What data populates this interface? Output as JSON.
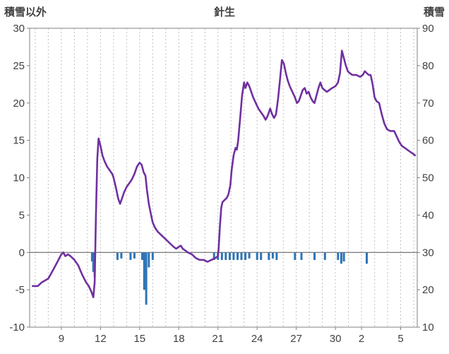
{
  "header": {
    "left_axis_title": "積雪以外",
    "title": "針生",
    "right_axis_title": "積雪"
  },
  "chart_data": {
    "type": "line",
    "title": "針生",
    "grid_color": "#c0c0c0",
    "axis_color": "#808080",
    "text_color": "#404040",
    "left_axis": {
      "label": "積雪以外",
      "min": -10,
      "max": 30,
      "ticks": [
        30,
        25,
        20,
        15,
        10,
        5,
        0,
        -5,
        -10
      ]
    },
    "right_axis": {
      "label": "積雪",
      "min": 10,
      "max": 90,
      "ticks": [
        90,
        80,
        70,
        60,
        50,
        40,
        30,
        20,
        10
      ]
    },
    "x_axis": {
      "min": 6.57,
      "max": 36.27,
      "ticks": [
        {
          "x": 9,
          "label": "9"
        },
        {
          "x": 12,
          "label": "12"
        },
        {
          "x": 15,
          "label": "15"
        },
        {
          "x": 18,
          "label": "18"
        },
        {
          "x": 21,
          "label": "21"
        },
        {
          "x": 24,
          "label": "24"
        },
        {
          "x": 27,
          "label": "27"
        },
        {
          "x": 30,
          "label": "30"
        },
        {
          "x": 32,
          "label": "2"
        },
        {
          "x": 35,
          "label": "5"
        }
      ]
    },
    "series": [
      {
        "name": "積雪",
        "type": "line",
        "axis": "right",
        "color": "#7030A0",
        "points": [
          [
            6.8,
            21
          ],
          [
            7.2,
            21
          ],
          [
            7.5,
            22
          ],
          [
            8.0,
            23
          ],
          [
            8.4,
            25.5
          ],
          [
            8.7,
            27.5
          ],
          [
            9.0,
            29.5
          ],
          [
            9.15,
            30
          ],
          [
            9.3,
            29
          ],
          [
            9.5,
            29.5
          ],
          [
            9.7,
            29
          ],
          [
            10.0,
            28
          ],
          [
            10.3,
            26.5
          ],
          [
            10.6,
            24
          ],
          [
            10.9,
            22
          ],
          [
            11.1,
            21
          ],
          [
            11.3,
            19.5
          ],
          [
            11.45,
            18
          ],
          [
            11.55,
            22
          ],
          [
            11.65,
            40
          ],
          [
            11.75,
            55
          ],
          [
            11.85,
            60.5
          ],
          [
            12.0,
            58.5
          ],
          [
            12.15,
            56
          ],
          [
            12.3,
            54.5
          ],
          [
            12.5,
            53
          ],
          [
            12.7,
            52
          ],
          [
            12.9,
            51
          ],
          [
            13.0,
            50
          ],
          [
            13.2,
            47
          ],
          [
            13.35,
            44.5
          ],
          [
            13.5,
            43
          ],
          [
            13.65,
            44.5
          ],
          [
            13.8,
            46
          ],
          [
            14.0,
            47.5
          ],
          [
            14.2,
            48.5
          ],
          [
            14.4,
            49.5
          ],
          [
            14.6,
            51
          ],
          [
            14.8,
            53
          ],
          [
            15.0,
            54
          ],
          [
            15.15,
            53.5
          ],
          [
            15.3,
            51.5
          ],
          [
            15.45,
            50.5
          ],
          [
            15.55,
            47
          ],
          [
            15.7,
            43
          ],
          [
            15.85,
            40.5
          ],
          [
            16.0,
            38
          ],
          [
            16.2,
            36.5
          ],
          [
            16.4,
            35.5
          ],
          [
            16.7,
            34.5
          ],
          [
            17.0,
            33.5
          ],
          [
            17.3,
            32.5
          ],
          [
            17.6,
            31.5
          ],
          [
            17.8,
            31
          ],
          [
            18.0,
            31.5
          ],
          [
            18.15,
            31.8
          ],
          [
            18.3,
            31
          ],
          [
            18.5,
            30.5
          ],
          [
            18.7,
            30
          ],
          [
            19.0,
            29.5
          ],
          [
            19.3,
            28.5
          ],
          [
            19.6,
            28
          ],
          [
            19.9,
            28
          ],
          [
            20.2,
            27.5
          ],
          [
            20.5,
            28
          ],
          [
            20.8,
            28.5
          ],
          [
            21.0,
            29
          ],
          [
            21.05,
            31
          ],
          [
            21.15,
            37
          ],
          [
            21.25,
            42
          ],
          [
            21.35,
            43.5
          ],
          [
            21.5,
            44
          ],
          [
            21.65,
            44.5
          ],
          [
            21.8,
            45.5
          ],
          [
            21.95,
            48
          ],
          [
            22.05,
            52
          ],
          [
            22.2,
            56
          ],
          [
            22.35,
            58
          ],
          [
            22.45,
            57.5
          ],
          [
            22.55,
            60
          ],
          [
            22.7,
            66
          ],
          [
            22.85,
            72
          ],
          [
            23.0,
            75.5
          ],
          [
            23.1,
            74
          ],
          [
            23.25,
            75.5
          ],
          [
            23.4,
            74.5
          ],
          [
            23.55,
            73
          ],
          [
            23.7,
            71.5
          ],
          [
            23.9,
            70
          ],
          [
            24.1,
            68.5
          ],
          [
            24.3,
            67.5
          ],
          [
            24.5,
            66.5
          ],
          [
            24.65,
            65.5
          ],
          [
            24.8,
            66.5
          ],
          [
            25.0,
            68.5
          ],
          [
            25.15,
            67
          ],
          [
            25.3,
            66
          ],
          [
            25.45,
            67
          ],
          [
            25.6,
            71
          ],
          [
            25.75,
            76
          ],
          [
            25.9,
            81.5
          ],
          [
            26.05,
            80.5
          ],
          [
            26.2,
            78
          ],
          [
            26.35,
            76
          ],
          [
            26.5,
            74.5
          ],
          [
            26.7,
            73
          ],
          [
            26.9,
            71.5
          ],
          [
            27.05,
            70
          ],
          [
            27.2,
            70.5
          ],
          [
            27.35,
            72
          ],
          [
            27.5,
            73.5
          ],
          [
            27.65,
            74
          ],
          [
            27.8,
            72.5
          ],
          [
            27.95,
            73
          ],
          [
            28.1,
            71.5
          ],
          [
            28.25,
            70.5
          ],
          [
            28.4,
            70
          ],
          [
            28.55,
            72
          ],
          [
            28.7,
            74
          ],
          [
            28.85,
            75.5
          ],
          [
            29.0,
            74
          ],
          [
            29.15,
            73.5
          ],
          [
            29.35,
            73
          ],
          [
            29.55,
            73.5
          ],
          [
            29.75,
            74
          ],
          [
            30.0,
            74.5
          ],
          [
            30.2,
            75.5
          ],
          [
            30.35,
            78
          ],
          [
            30.5,
            84
          ],
          [
            30.65,
            82
          ],
          [
            30.8,
            80
          ],
          [
            30.95,
            78.5
          ],
          [
            31.1,
            78
          ],
          [
            31.3,
            77.5
          ],
          [
            31.6,
            77.5
          ],
          [
            31.9,
            77
          ],
          [
            32.1,
            77.5
          ],
          [
            32.25,
            78.5
          ],
          [
            32.4,
            78
          ],
          [
            32.55,
            77.5
          ],
          [
            32.7,
            77.5
          ],
          [
            32.85,
            75
          ],
          [
            33.0,
            71.5
          ],
          [
            33.15,
            70.5
          ],
          [
            33.35,
            70
          ],
          [
            33.55,
            67
          ],
          [
            33.75,
            64.5
          ],
          [
            33.95,
            63
          ],
          [
            34.2,
            62.5
          ],
          [
            34.5,
            62.5
          ],
          [
            34.7,
            61
          ],
          [
            34.9,
            59.5
          ],
          [
            35.1,
            58.5
          ],
          [
            35.3,
            58
          ],
          [
            35.5,
            57.5
          ],
          [
            35.7,
            57
          ],
          [
            35.9,
            56.5
          ],
          [
            36.1,
            56
          ]
        ]
      },
      {
        "name": "積雪以外",
        "type": "bar",
        "axis": "left",
        "color": "#2E74B6",
        "points": [
          [
            11.35,
            -1.2
          ],
          [
            11.45,
            -2.6
          ],
          [
            11.55,
            -3.3
          ],
          [
            13.3,
            -1
          ],
          [
            13.6,
            -0.8
          ],
          [
            14.3,
            -1
          ],
          [
            14.6,
            -0.8
          ],
          [
            15.2,
            -1
          ],
          [
            15.35,
            -5
          ],
          [
            15.5,
            -7
          ],
          [
            15.7,
            -2
          ],
          [
            16.0,
            -1
          ],
          [
            20.7,
            -1
          ],
          [
            21.0,
            -1
          ],
          [
            21.3,
            -1
          ],
          [
            21.6,
            -1
          ],
          [
            21.9,
            -1
          ],
          [
            22.2,
            -1
          ],
          [
            22.5,
            -1
          ],
          [
            22.8,
            -1
          ],
          [
            23.1,
            -1
          ],
          [
            23.4,
            -0.8
          ],
          [
            24.0,
            -1
          ],
          [
            24.3,
            -1
          ],
          [
            24.9,
            -1
          ],
          [
            25.2,
            -0.8
          ],
          [
            25.5,
            -1
          ],
          [
            26.9,
            -1
          ],
          [
            27.4,
            -1
          ],
          [
            28.4,
            -1
          ],
          [
            29.2,
            -1
          ],
          [
            30.2,
            -1
          ],
          [
            30.45,
            -1.5
          ],
          [
            30.65,
            -1.2
          ],
          [
            32.4,
            -1.5
          ]
        ]
      }
    ]
  }
}
